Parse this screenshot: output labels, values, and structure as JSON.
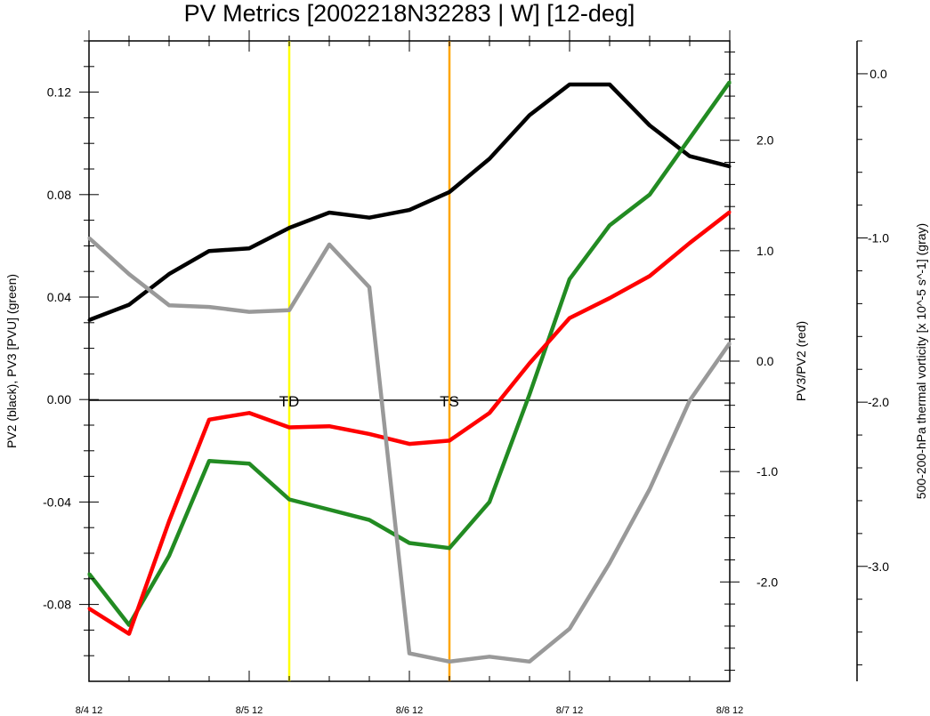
{
  "chart_data": {
    "type": "line",
    "title": "PV Metrics [2002218N32283 | W] [12-deg]",
    "x": [
      "8/4 12",
      "8/4 18",
      "8/5 00",
      "8/5 06",
      "8/5 12",
      "8/5 18",
      "8/6 00",
      "8/6 06",
      "8/6 12",
      "8/6 18",
      "8/7 00",
      "8/7 06",
      "8/7 12",
      "8/7 18",
      "8/8 00",
      "8/8 06",
      "8/8 12"
    ],
    "x_tick_labels": [
      "8/4 12",
      "8/5 12",
      "8/6 12",
      "8/7 12",
      "8/8 12"
    ],
    "axes": {
      "left": {
        "label": "PV2 (black), PV3 [PVU] (green)",
        "ylim": [
          -0.11,
          0.14
        ],
        "ticks": [
          "0.12",
          "0.08",
          "0.04",
          "0.00",
          "-0.04",
          "-0.08"
        ],
        "tick_values": [
          0.12,
          0.08,
          0.04,
          0.0,
          -0.04,
          -0.08
        ]
      },
      "right": {
        "label": "PV3/PV2 (red)",
        "ylim": [
          -2.9,
          2.9
        ],
        "ticks": [
          "2.0",
          "1.0",
          "0.0",
          "-1.0",
          "-2.0"
        ],
        "tick_values": [
          2.0,
          1.0,
          0.0,
          -1.0,
          -2.0
        ]
      },
      "far_right": {
        "label": "500-200-hPa thermal vorticity [x 10^-5 s^-1] (gray)",
        "ylim": [
          -3.7,
          0.2
        ],
        "ticks": [
          "0.0",
          "-1.0",
          "-2.0",
          "-3.0"
        ],
        "tick_values": [
          0.0,
          -1.0,
          -2.0,
          -3.0
        ]
      }
    },
    "series": [
      {
        "name": "PV2",
        "color": "#000000",
        "axis": "left",
        "values": [
          0.031,
          0.037,
          0.049,
          0.058,
          0.059,
          0.067,
          0.073,
          0.071,
          0.074,
          0.081,
          0.094,
          0.111,
          0.123,
          0.123,
          0.107,
          0.095,
          0.091
        ]
      },
      {
        "name": "PV3",
        "color": "#228b22",
        "axis": "left",
        "values": [
          -0.068,
          -0.088,
          -0.061,
          -0.024,
          -0.025,
          -0.039,
          -0.043,
          -0.047,
          -0.056,
          -0.058,
          -0.04,
          0.002,
          0.047,
          0.068,
          0.08,
          0.102,
          0.124
        ]
      },
      {
        "name": "PV3/PV2",
        "color": "#ff0000",
        "axis": "right",
        "values": [
          -2.24,
          -2.47,
          -1.45,
          -0.53,
          -0.47,
          -0.6,
          -0.59,
          -0.66,
          -0.75,
          -0.72,
          -0.47,
          -0.02,
          0.39,
          0.57,
          0.77,
          1.07,
          1.35
        ]
      },
      {
        "name": "thermal vorticity",
        "color": "#999999",
        "axis": "far_right",
        "values": [
          -1.0,
          -1.22,
          -1.41,
          -1.42,
          -1.45,
          -1.44,
          -1.04,
          -1.3,
          -3.53,
          -3.58,
          -3.55,
          -3.58,
          -3.38,
          -2.98,
          -2.53,
          -1.99,
          -1.64
        ]
      }
    ],
    "events": [
      {
        "label": "TD",
        "x_index": 5,
        "color": "#ffff00"
      },
      {
        "label": "TS",
        "x_index": 9,
        "color": "#ffa500"
      }
    ],
    "zero_line": true,
    "grid": false,
    "legend": "none"
  }
}
